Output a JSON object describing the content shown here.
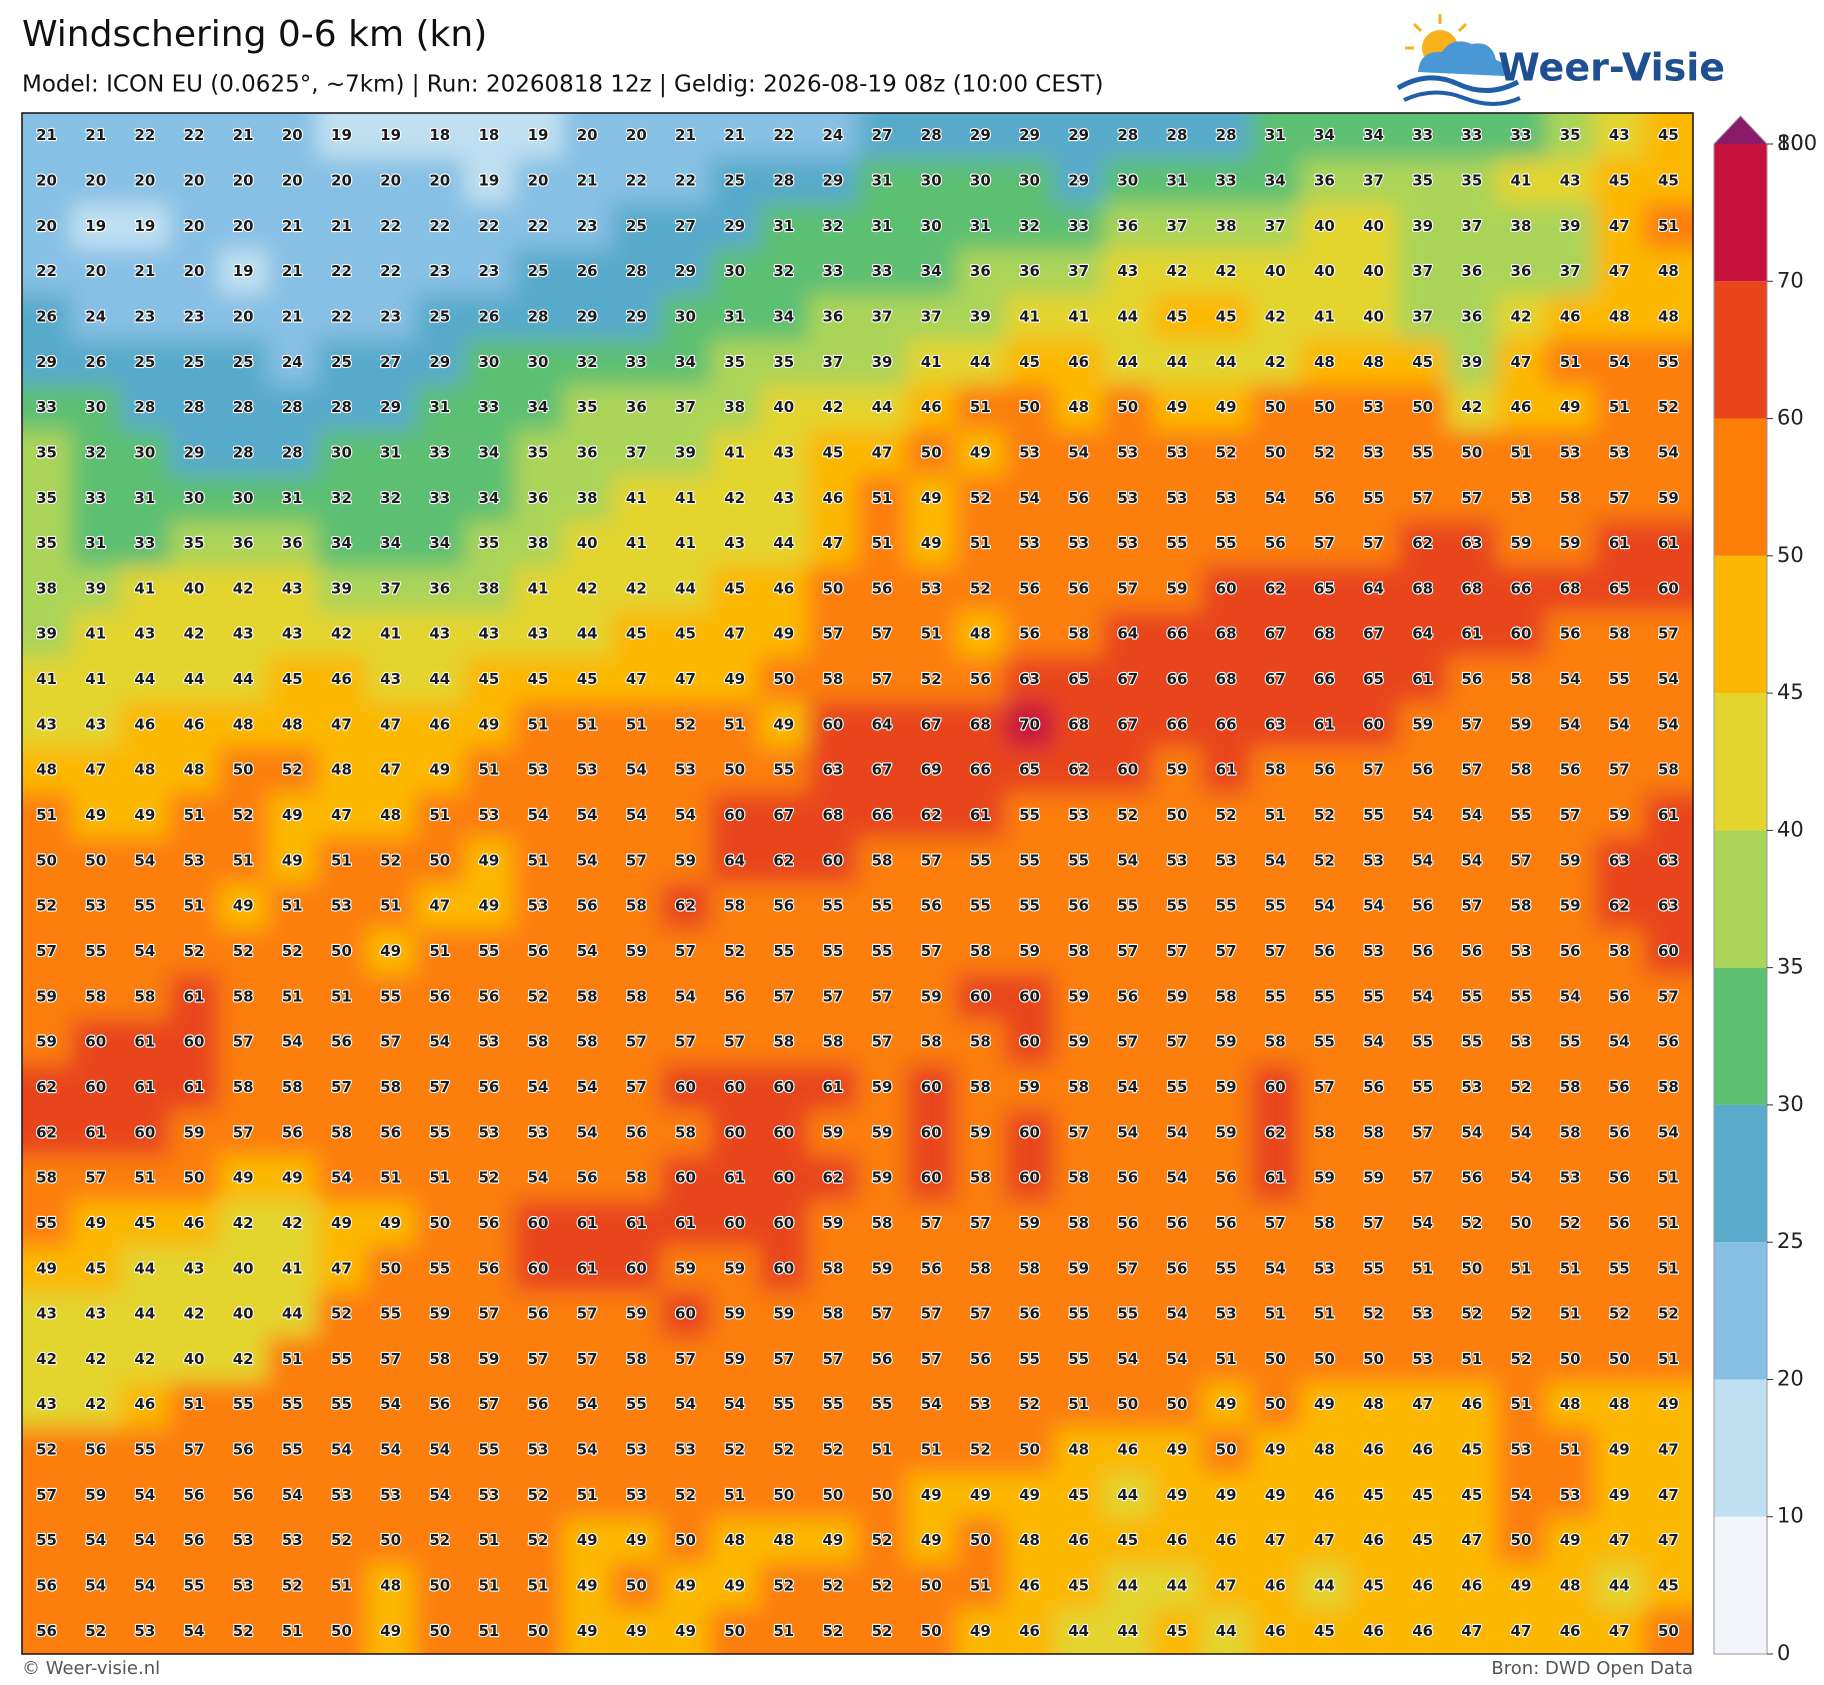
{
  "header": {
    "title": "Windschering 0-6 km (kn)",
    "subtitle": "Model: ICON EU (0.0625°, ~7km)  |  Run: 20260818 12z  |  Geldig: 2026-08-19 08z (10:00 CEST)",
    "logo": "Weer-Visie"
  },
  "map": {
    "grid": [
      [
        21,
        21,
        22,
        22,
        21,
        20,
        19,
        19,
        18,
        18,
        19,
        20,
        20,
        21,
        21,
        22,
        24,
        27,
        28,
        29,
        29,
        29,
        28,
        28,
        28,
        31,
        34,
        34,
        33,
        33,
        33,
        35,
        43,
        45
      ],
      [
        20,
        20,
        20,
        20,
        20,
        20,
        20,
        20,
        20,
        19,
        20,
        21,
        22,
        22,
        25,
        28,
        29,
        31,
        30,
        30,
        30,
        29,
        30,
        31,
        33,
        34,
        36,
        37,
        35,
        35,
        41,
        43,
        45,
        45
      ],
      [
        20,
        19,
        19,
        20,
        20,
        21,
        21,
        22,
        22,
        22,
        22,
        23,
        25,
        27,
        29,
        31,
        32,
        31,
        30,
        31,
        32,
        33,
        36,
        37,
        38,
        37,
        40,
        40,
        39,
        37,
        38,
        39,
        47,
        51
      ],
      [
        22,
        20,
        21,
        20,
        19,
        21,
        22,
        22,
        23,
        23,
        25,
        26,
        28,
        29,
        30,
        32,
        33,
        33,
        34,
        36,
        36,
        37,
        43,
        42,
        42,
        40,
        40,
        40,
        37,
        36,
        36,
        37,
        47,
        48
      ],
      [
        26,
        24,
        23,
        23,
        20,
        21,
        22,
        23,
        25,
        26,
        28,
        29,
        29,
        30,
        31,
        34,
        36,
        37,
        37,
        39,
        41,
        41,
        44,
        45,
        45,
        42,
        41,
        40,
        37,
        36,
        42,
        46,
        48,
        48
      ],
      [
        29,
        26,
        25,
        25,
        25,
        24,
        25,
        27,
        29,
        30,
        30,
        32,
        33,
        34,
        35,
        35,
        37,
        39,
        41,
        44,
        45,
        46,
        44,
        44,
        44,
        42,
        48,
        48,
        45,
        39,
        47,
        51,
        54,
        55
      ],
      [
        33,
        30,
        28,
        28,
        28,
        28,
        28,
        29,
        31,
        33,
        34,
        35,
        36,
        37,
        38,
        40,
        42,
        44,
        46,
        51,
        50,
        48,
        50,
        49,
        49,
        50,
        50,
        53,
        50,
        42,
        46,
        49,
        51,
        52
      ],
      [
        35,
        32,
        30,
        29,
        28,
        28,
        30,
        31,
        33,
        34,
        35,
        36,
        37,
        39,
        41,
        43,
        45,
        47,
        50,
        49,
        53,
        54,
        53,
        53,
        52,
        50,
        52,
        53,
        55,
        50,
        51,
        53,
        53,
        54
      ],
      [
        35,
        33,
        31,
        30,
        30,
        31,
        32,
        32,
        33,
        34,
        36,
        38,
        41,
        41,
        42,
        43,
        46,
        51,
        49,
        52,
        54,
        56,
        53,
        53,
        53,
        54,
        56,
        55,
        57,
        57,
        53,
        58,
        57,
        59
      ],
      [
        35,
        31,
        33,
        35,
        36,
        36,
        34,
        34,
        34,
        35,
        38,
        40,
        41,
        41,
        43,
        44,
        47,
        51,
        49,
        51,
        53,
        53,
        53,
        55,
        55,
        56,
        57,
        57,
        62,
        63,
        59,
        59,
        61,
        61
      ],
      [
        38,
        39,
        41,
        40,
        42,
        43,
        39,
        37,
        36,
        38,
        41,
        42,
        42,
        44,
        45,
        46,
        50,
        56,
        53,
        52,
        56,
        56,
        57,
        59,
        60,
        62,
        65,
        64,
        68,
        68,
        66,
        68,
        65,
        60
      ],
      [
        39,
        41,
        43,
        42,
        43,
        43,
        42,
        41,
        43,
        43,
        43,
        44,
        45,
        45,
        47,
        49,
        57,
        57,
        51,
        48,
        56,
        58,
        64,
        66,
        68,
        67,
        68,
        67,
        64,
        61,
        60,
        56,
        58,
        57
      ],
      [
        41,
        41,
        44,
        44,
        44,
        45,
        46,
        43,
        44,
        45,
        45,
        45,
        47,
        47,
        49,
        50,
        58,
        57,
        52,
        56,
        63,
        65,
        67,
        66,
        68,
        67,
        66,
        65,
        61,
        56,
        58,
        54,
        55,
        54
      ],
      [
        43,
        43,
        46,
        46,
        48,
        48,
        47,
        47,
        46,
        49,
        51,
        51,
        51,
        52,
        51,
        49,
        60,
        64,
        67,
        68,
        70,
        68,
        67,
        66,
        66,
        63,
        61,
        60,
        59,
        57,
        59,
        54,
        54,
        54
      ],
      [
        48,
        47,
        48,
        48,
        50,
        52,
        48,
        47,
        49,
        51,
        53,
        53,
        54,
        53,
        50,
        55,
        63,
        67,
        69,
        66,
        65,
        62,
        60,
        59,
        61,
        58,
        56,
        57,
        56,
        57,
        58,
        56,
        57,
        58
      ],
      [
        51,
        49,
        49,
        51,
        52,
        49,
        47,
        48,
        51,
        53,
        54,
        54,
        54,
        54,
        60,
        67,
        68,
        66,
        62,
        61,
        55,
        53,
        52,
        50,
        52,
        51,
        52,
        55,
        54,
        54,
        55,
        57,
        59,
        61
      ],
      [
        50,
        50,
        54,
        53,
        51,
        49,
        51,
        52,
        50,
        49,
        51,
        54,
        57,
        59,
        64,
        62,
        60,
        58,
        57,
        55,
        55,
        55,
        54,
        53,
        53,
        54,
        52,
        53,
        54,
        54,
        57,
        59,
        63,
        63
      ],
      [
        52,
        53,
        55,
        51,
        49,
        51,
        53,
        51,
        47,
        49,
        53,
        56,
        58,
        62,
        58,
        56,
        55,
        55,
        56,
        55,
        55,
        56,
        55,
        55,
        55,
        55,
        54,
        54,
        56,
        57,
        58,
        59,
        62,
        63
      ],
      [
        57,
        55,
        54,
        52,
        52,
        52,
        50,
        49,
        51,
        55,
        56,
        54,
        59,
        57,
        52,
        55,
        55,
        55,
        57,
        58,
        59,
        58,
        57,
        57,
        57,
        57,
        56,
        53,
        56,
        56,
        53,
        56,
        58,
        60
      ],
      [
        59,
        58,
        58,
        61,
        58,
        51,
        51,
        55,
        56,
        56,
        52,
        58,
        58,
        54,
        56,
        57,
        57,
        57,
        59,
        60,
        60,
        59,
        56,
        59,
        58,
        55,
        55,
        55,
        54,
        55,
        55,
        54,
        56,
        57
      ],
      [
        59,
        60,
        61,
        60,
        57,
        54,
        56,
        57,
        54,
        53,
        58,
        58,
        57,
        57,
        57,
        58,
        58,
        57,
        58,
        58,
        60,
        59,
        57,
        57,
        59,
        58,
        55,
        54,
        55,
        55,
        53,
        55,
        54,
        56
      ],
      [
        62,
        60,
        61,
        61,
        58,
        58,
        57,
        58,
        57,
        56,
        54,
        54,
        57,
        60,
        60,
        60,
        61,
        59,
        60,
        58,
        59,
        58,
        54,
        55,
        59,
        60,
        57,
        56,
        55,
        53,
        52,
        58,
        56,
        58
      ],
      [
        62,
        61,
        60,
        59,
        57,
        56,
        58,
        56,
        55,
        53,
        53,
        54,
        56,
        58,
        60,
        60,
        59,
        59,
        60,
        59,
        60,
        57,
        54,
        54,
        59,
        62,
        58,
        58,
        57,
        54,
        54,
        58,
        56,
        54
      ],
      [
        58,
        57,
        51,
        50,
        49,
        49,
        54,
        51,
        51,
        52,
        54,
        56,
        58,
        60,
        61,
        60,
        62,
        59,
        60,
        58,
        60,
        58,
        56,
        54,
        56,
        61,
        59,
        59,
        57,
        56,
        54,
        53,
        56,
        51
      ],
      [
        55,
        49,
        45,
        46,
        42,
        42,
        49,
        49,
        50,
        56,
        60,
        61,
        61,
        61,
        60,
        60,
        59,
        58,
        57,
        57,
        59,
        58,
        56,
        56,
        56,
        57,
        58,
        57,
        54,
        52,
        50,
        52,
        56,
        51
      ],
      [
        49,
        45,
        44,
        43,
        40,
        41,
        47,
        50,
        55,
        56,
        60,
        61,
        60,
        59,
        59,
        60,
        58,
        59,
        56,
        58,
        58,
        59,
        57,
        56,
        55,
        54,
        53,
        55,
        51,
        50,
        51,
        51,
        55,
        51
      ],
      [
        43,
        43,
        44,
        42,
        40,
        44,
        52,
        55,
        59,
        57,
        56,
        57,
        59,
        60,
        59,
        59,
        58,
        57,
        57,
        57,
        56,
        55,
        55,
        54,
        53,
        51,
        51,
        52,
        53,
        52,
        52,
        51,
        52,
        52
      ],
      [
        42,
        42,
        42,
        40,
        42,
        51,
        55,
        57,
        58,
        59,
        57,
        57,
        58,
        57,
        59,
        57,
        57,
        56,
        57,
        56,
        55,
        55,
        54,
        54,
        51,
        50,
        50,
        50,
        53,
        51,
        52,
        50,
        50,
        51
      ],
      [
        43,
        42,
        46,
        51,
        55,
        55,
        55,
        54,
        56,
        57,
        56,
        54,
        55,
        54,
        54,
        55,
        55,
        55,
        54,
        53,
        52,
        51,
        50,
        50,
        49,
        50,
        49,
        48,
        47,
        46,
        51,
        48,
        48,
        49
      ],
      [
        52,
        56,
        55,
        57,
        56,
        55,
        54,
        54,
        54,
        55,
        53,
        54,
        53,
        53,
        52,
        52,
        52,
        51,
        51,
        52,
        50,
        48,
        46,
        49,
        50,
        49,
        48,
        46,
        46,
        45,
        53,
        51,
        49,
        47
      ],
      [
        57,
        59,
        54,
        56,
        56,
        54,
        53,
        53,
        54,
        53,
        52,
        51,
        53,
        52,
        51,
        50,
        50,
        50,
        49,
        49,
        49,
        45,
        44,
        49,
        49,
        49,
        46,
        45,
        45,
        45,
        54,
        53,
        49,
        47
      ],
      [
        55,
        54,
        54,
        56,
        53,
        53,
        52,
        50,
        52,
        51,
        52,
        49,
        49,
        50,
        48,
        48,
        49,
        52,
        49,
        50,
        48,
        46,
        45,
        46,
        46,
        47,
        47,
        46,
        45,
        47,
        50,
        49,
        47,
        47
      ],
      [
        56,
        54,
        54,
        55,
        53,
        52,
        51,
        48,
        50,
        51,
        51,
        49,
        50,
        49,
        49,
        52,
        52,
        52,
        50,
        51,
        46,
        45,
        44,
        44,
        47,
        46,
        44,
        45,
        46,
        46,
        49,
        48,
        44,
        45
      ],
      [
        56,
        52,
        53,
        54,
        52,
        51,
        50,
        49,
        50,
        51,
        50,
        49,
        49,
        49,
        50,
        51,
        52,
        52,
        50,
        49,
        46,
        44,
        44,
        45,
        44,
        46,
        45,
        46,
        46,
        47,
        47,
        46,
        47,
        50
      ]
    ]
  },
  "colorbar": {
    "levels": [
      0,
      10,
      20,
      25,
      30,
      35,
      40,
      45,
      50,
      60,
      70,
      80,
      100
    ],
    "colors": [
      "#f2f6fa",
      "#c0e0f2",
      "#86c0e4",
      "#59aacb",
      "#5cbf72",
      "#aad458",
      "#e3d42e",
      "#fcb702",
      "#fc7e09",
      "#e8451a",
      "#c8123e",
      "#8b1a68"
    ]
  },
  "footer": {
    "left": "© Weer-visie.nl",
    "right": "Bron: DWD Open Data"
  }
}
